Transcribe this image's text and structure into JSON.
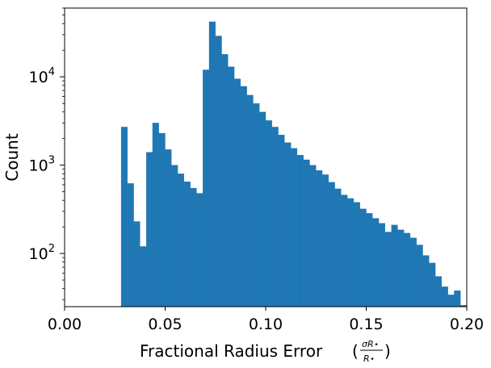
{
  "chart_data": {
    "type": "bar",
    "title": "",
    "xlabel": "Fractional Radius Error",
    "xlabel_fraction": {
      "numerator": "σR⋆",
      "denominator": "R⋆"
    },
    "ylabel": "Count",
    "yscale": "log",
    "xlim": [
      0.0,
      0.2
    ],
    "ylim": [
      25,
      60000
    ],
    "x_ticks": [
      "0.00",
      "0.05",
      "0.10",
      "0.15",
      "0.20"
    ],
    "y_ticks": [
      {
        "value": 100,
        "base": "10",
        "exp": "2"
      },
      {
        "value": 1000,
        "base": "10",
        "exp": "3"
      },
      {
        "value": 10000,
        "base": "10",
        "exp": "4"
      }
    ],
    "bin_width": 0.003125,
    "bar_color": "#1f77b4",
    "bins_start": [
      0.02813,
      0.03125,
      0.03438,
      0.0375,
      0.04063,
      0.04375,
      0.04688,
      0.05,
      0.05313,
      0.05625,
      0.05938,
      0.0625,
      0.06563,
      0.06875,
      0.07188,
      0.075,
      0.07813,
      0.08125,
      0.08438,
      0.0875,
      0.09063,
      0.09375,
      0.09688,
      0.1,
      0.10313,
      0.10625,
      0.10938,
      0.1125,
      0.11563,
      0.11875,
      0.12188,
      0.125,
      0.12813,
      0.13125,
      0.13438,
      0.1375,
      0.14063,
      0.14375,
      0.14688,
      0.15,
      0.15313,
      0.15625,
      0.15938,
      0.1625,
      0.16563,
      0.16875,
      0.17188,
      0.175,
      0.17813,
      0.18125,
      0.18438,
      0.1875,
      0.19063,
      0.19375,
      0.19688
    ],
    "values": [
      2700,
      620,
      230,
      120,
      1400,
      3000,
      2300,
      1500,
      1000,
      800,
      650,
      550,
      480,
      12000,
      42000,
      29000,
      18000,
      13000,
      9500,
      7800,
      6200,
      5000,
      4000,
      3200,
      2700,
      2200,
      1800,
      1550,
      1300,
      1150,
      1000,
      870,
      780,
      640,
      540,
      460,
      420,
      380,
      320,
      285,
      250,
      220,
      175,
      210,
      185,
      170,
      150,
      125,
      95,
      78,
      55,
      42,
      34,
      38,
      26
    ]
  }
}
